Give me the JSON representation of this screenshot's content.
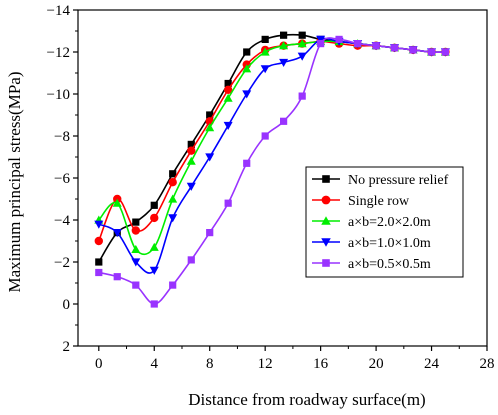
{
  "chart_data": {
    "type": "line",
    "title": "",
    "xlabel": "Distance from roadway surface(m)",
    "ylabel": "Maximum principal stress(MPa)",
    "xlim": [
      -1.5,
      28
    ],
    "ylim": [
      2,
      -14
    ],
    "y_axis_inverted": true,
    "xticks": [
      0,
      4,
      8,
      12,
      16,
      20,
      24,
      28
    ],
    "yticks": [
      -14,
      -12,
      -10,
      -8,
      -6,
      -4,
      -2,
      0,
      2
    ],
    "grid": false,
    "legend_position": "center-right",
    "series": [
      {
        "name": "No pressure relief",
        "color": "#000000",
        "marker": "square",
        "x": [
          0,
          1.33,
          2.67,
          4.0,
          5.33,
          6.67,
          8.0,
          9.33,
          10.67,
          12.0,
          13.33,
          14.67,
          16.0,
          17.33,
          18.67,
          20.0,
          21.33,
          22.67,
          24.0,
          25.0
        ],
        "y": [
          -2.0,
          -3.4,
          -3.9,
          -4.7,
          -6.2,
          -7.6,
          -9.0,
          -10.5,
          -12.0,
          -12.6,
          -12.8,
          -12.8,
          -12.6,
          -12.5,
          -12.4,
          -12.3,
          -12.2,
          -12.1,
          -12.0,
          -12.0
        ]
      },
      {
        "name": "Single row",
        "color": "#ff0000",
        "marker": "circle",
        "x": [
          0,
          1.33,
          2.67,
          4.0,
          5.33,
          6.67,
          8.0,
          9.33,
          10.67,
          12.0,
          13.33,
          14.67,
          16.0,
          17.33,
          18.67,
          20.0,
          21.33,
          22.67,
          24.0,
          25.0
        ],
        "y": [
          -3.0,
          -5.0,
          -3.5,
          -4.1,
          -5.8,
          -7.3,
          -8.7,
          -10.2,
          -11.4,
          -12.1,
          -12.3,
          -12.4,
          -12.5,
          -12.4,
          -12.3,
          -12.3,
          -12.2,
          -12.1,
          -12.0,
          -12.0
        ]
      },
      {
        "name": "a×b=2.0×2.0m",
        "color": "#00ee00",
        "marker": "triangle-up",
        "x": [
          0,
          1.33,
          2.67,
          4.0,
          5.33,
          6.67,
          8.0,
          9.33,
          10.67,
          12.0,
          13.33,
          14.67,
          16.0,
          17.33,
          18.67,
          20.0,
          21.33,
          22.67,
          24.0,
          25.0
        ],
        "y": [
          -4.0,
          -4.8,
          -2.6,
          -2.7,
          -5.0,
          -6.8,
          -8.4,
          -9.8,
          -11.2,
          -12.0,
          -12.3,
          -12.4,
          -12.5,
          -12.5,
          -12.4,
          -12.3,
          -12.2,
          -12.1,
          -12.0,
          -12.0
        ]
      },
      {
        "name": "a×b=1.0×1.0m",
        "color": "#0000ff",
        "marker": "triangle-down",
        "x": [
          0,
          1.33,
          2.67,
          4.0,
          5.33,
          6.67,
          8.0,
          9.33,
          10.67,
          12.0,
          13.33,
          14.67,
          16.0,
          17.33,
          18.67,
          20.0,
          21.33,
          22.67,
          24.0,
          25.0
        ],
        "y": [
          -3.8,
          -3.4,
          -2.0,
          -1.6,
          -4.1,
          -5.6,
          -7.0,
          -8.5,
          -10.0,
          -11.2,
          -11.5,
          -11.8,
          -12.6,
          -12.5,
          -12.4,
          -12.3,
          -12.2,
          -12.1,
          -12.0,
          -12.0
        ]
      },
      {
        "name": "a×b=0.5×0.5m",
        "color": "#9933ff",
        "marker": "square",
        "x": [
          0,
          1.33,
          2.67,
          4.0,
          5.33,
          6.67,
          8.0,
          9.33,
          10.67,
          12.0,
          13.33,
          14.67,
          16.0,
          17.33,
          18.67,
          20.0,
          21.33,
          22.67,
          24.0,
          25.0
        ],
        "y": [
          -1.5,
          -1.3,
          -0.9,
          0.0,
          -0.9,
          -2.1,
          -3.4,
          -4.8,
          -6.7,
          -8.0,
          -8.7,
          -9.9,
          -12.4,
          -12.6,
          -12.4,
          -12.3,
          -12.2,
          -12.1,
          -12.0,
          -12.0
        ]
      }
    ]
  }
}
